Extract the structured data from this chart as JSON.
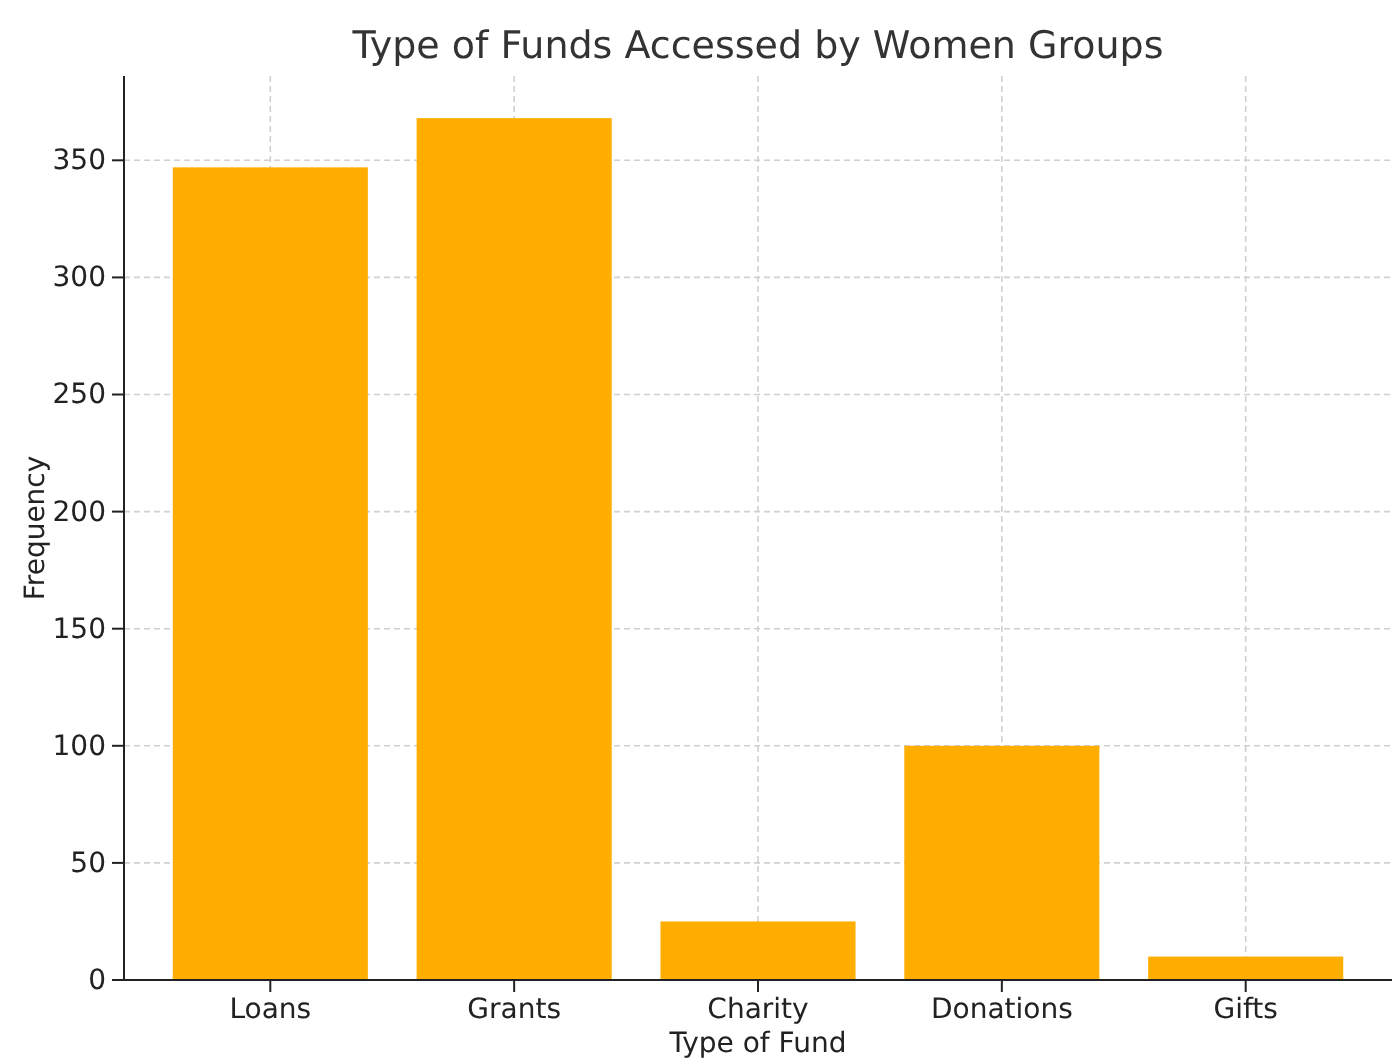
{
  "chart_data": {
    "type": "bar",
    "title": "Type of Funds Accessed by Women Groups",
    "xlabel": "Type of Fund",
    "ylabel": "Frequency",
    "categories": [
      "Loans",
      "Grants",
      "Charity",
      "Donations",
      "Gifts"
    ],
    "values": [
      347,
      368,
      25,
      100,
      10
    ],
    "color": "#ffae00",
    "ylim": [
      0,
      386
    ],
    "yticks": [
      0,
      50,
      100,
      150,
      200,
      250,
      300,
      350
    ],
    "grid": true
  }
}
